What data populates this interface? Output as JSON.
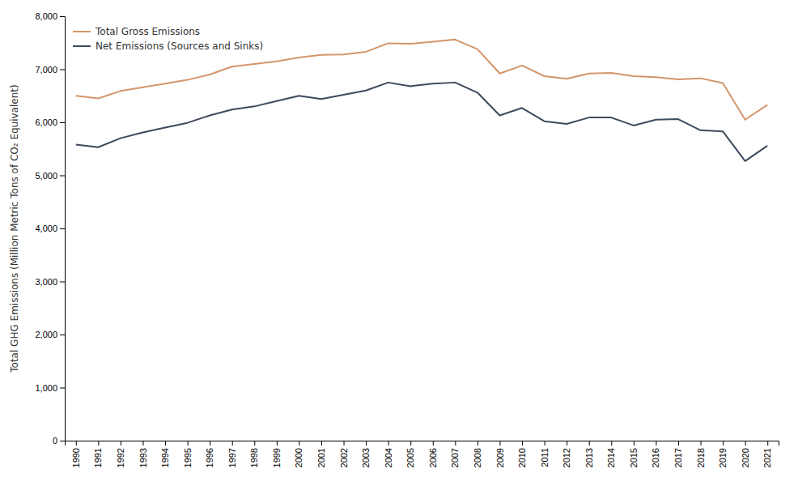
{
  "chart_data": {
    "type": "line",
    "y_label": "Total GHG Emissions (Million Metric Tons of CO₂ Equivalent)",
    "x": [
      1990,
      1991,
      1992,
      1993,
      1994,
      1995,
      1996,
      1997,
      1998,
      1999,
      2000,
      2001,
      2002,
      2003,
      2004,
      2005,
      2006,
      2007,
      2008,
      2009,
      2010,
      2011,
      2012,
      2013,
      2014,
      2015,
      2016,
      2017,
      2018,
      2019,
      2020,
      2021
    ],
    "series": [
      {
        "name": "Total Gross Emissions",
        "color": "#d4956a",
        "values": [
          6500,
          6450,
          6590,
          6660,
          6730,
          6800,
          6900,
          7050,
          7100,
          7150,
          7220,
          7270,
          7280,
          7330,
          7490,
          7480,
          7520,
          7560,
          7380,
          6920,
          7070,
          6870,
          6820,
          6920,
          6930,
          6870,
          6850,
          6810,
          6830,
          6740,
          6050,
          6330
        ]
      },
      {
        "name": "Net Emissions (Sources and Sinks)",
        "color": "#3d4a5c",
        "values": [
          5580,
          5530,
          5700,
          5810,
          5900,
          5990,
          6130,
          6240,
          6300,
          6400,
          6500,
          6440,
          6520,
          6600,
          6750,
          6680,
          6730,
          6750,
          6560,
          6130,
          6270,
          6020,
          5970,
          6090,
          6090,
          5940,
          6050,
          6060,
          5850,
          5830,
          5270,
          5560
        ]
      }
    ],
    "xlim": [
      1989.5,
      2021.5
    ],
    "xticks": [
      1990,
      1991,
      1992,
      1993,
      1994,
      1995,
      1996,
      1997,
      1998,
      1999,
      2000,
      2001,
      2002,
      2003,
      2004,
      2005,
      2006,
      2007,
      2008,
      2009,
      2010,
      2011,
      2012,
      2013,
      2014,
      2015,
      2016,
      2017,
      2018,
      2019,
      2020,
      2021
    ],
    "ylim": [
      0,
      8000
    ],
    "yticks": [
      0,
      {
        "value": 1000,
        "label": "1,000"
      },
      {
        "value": 2000,
        "label": "2,000"
      },
      {
        "value": 3000,
        "label": "3,000"
      },
      {
        "value": 4000,
        "label": "4,000"
      },
      {
        "value": 5000,
        "label": "5,000"
      },
      {
        "value": 6000,
        "label": "6,000"
      },
      {
        "value": 7000,
        "label": "7,000"
      },
      {
        "value": 8000,
        "label": "8,000"
      }
    ],
    "grid": false,
    "legend": "upper left"
  }
}
